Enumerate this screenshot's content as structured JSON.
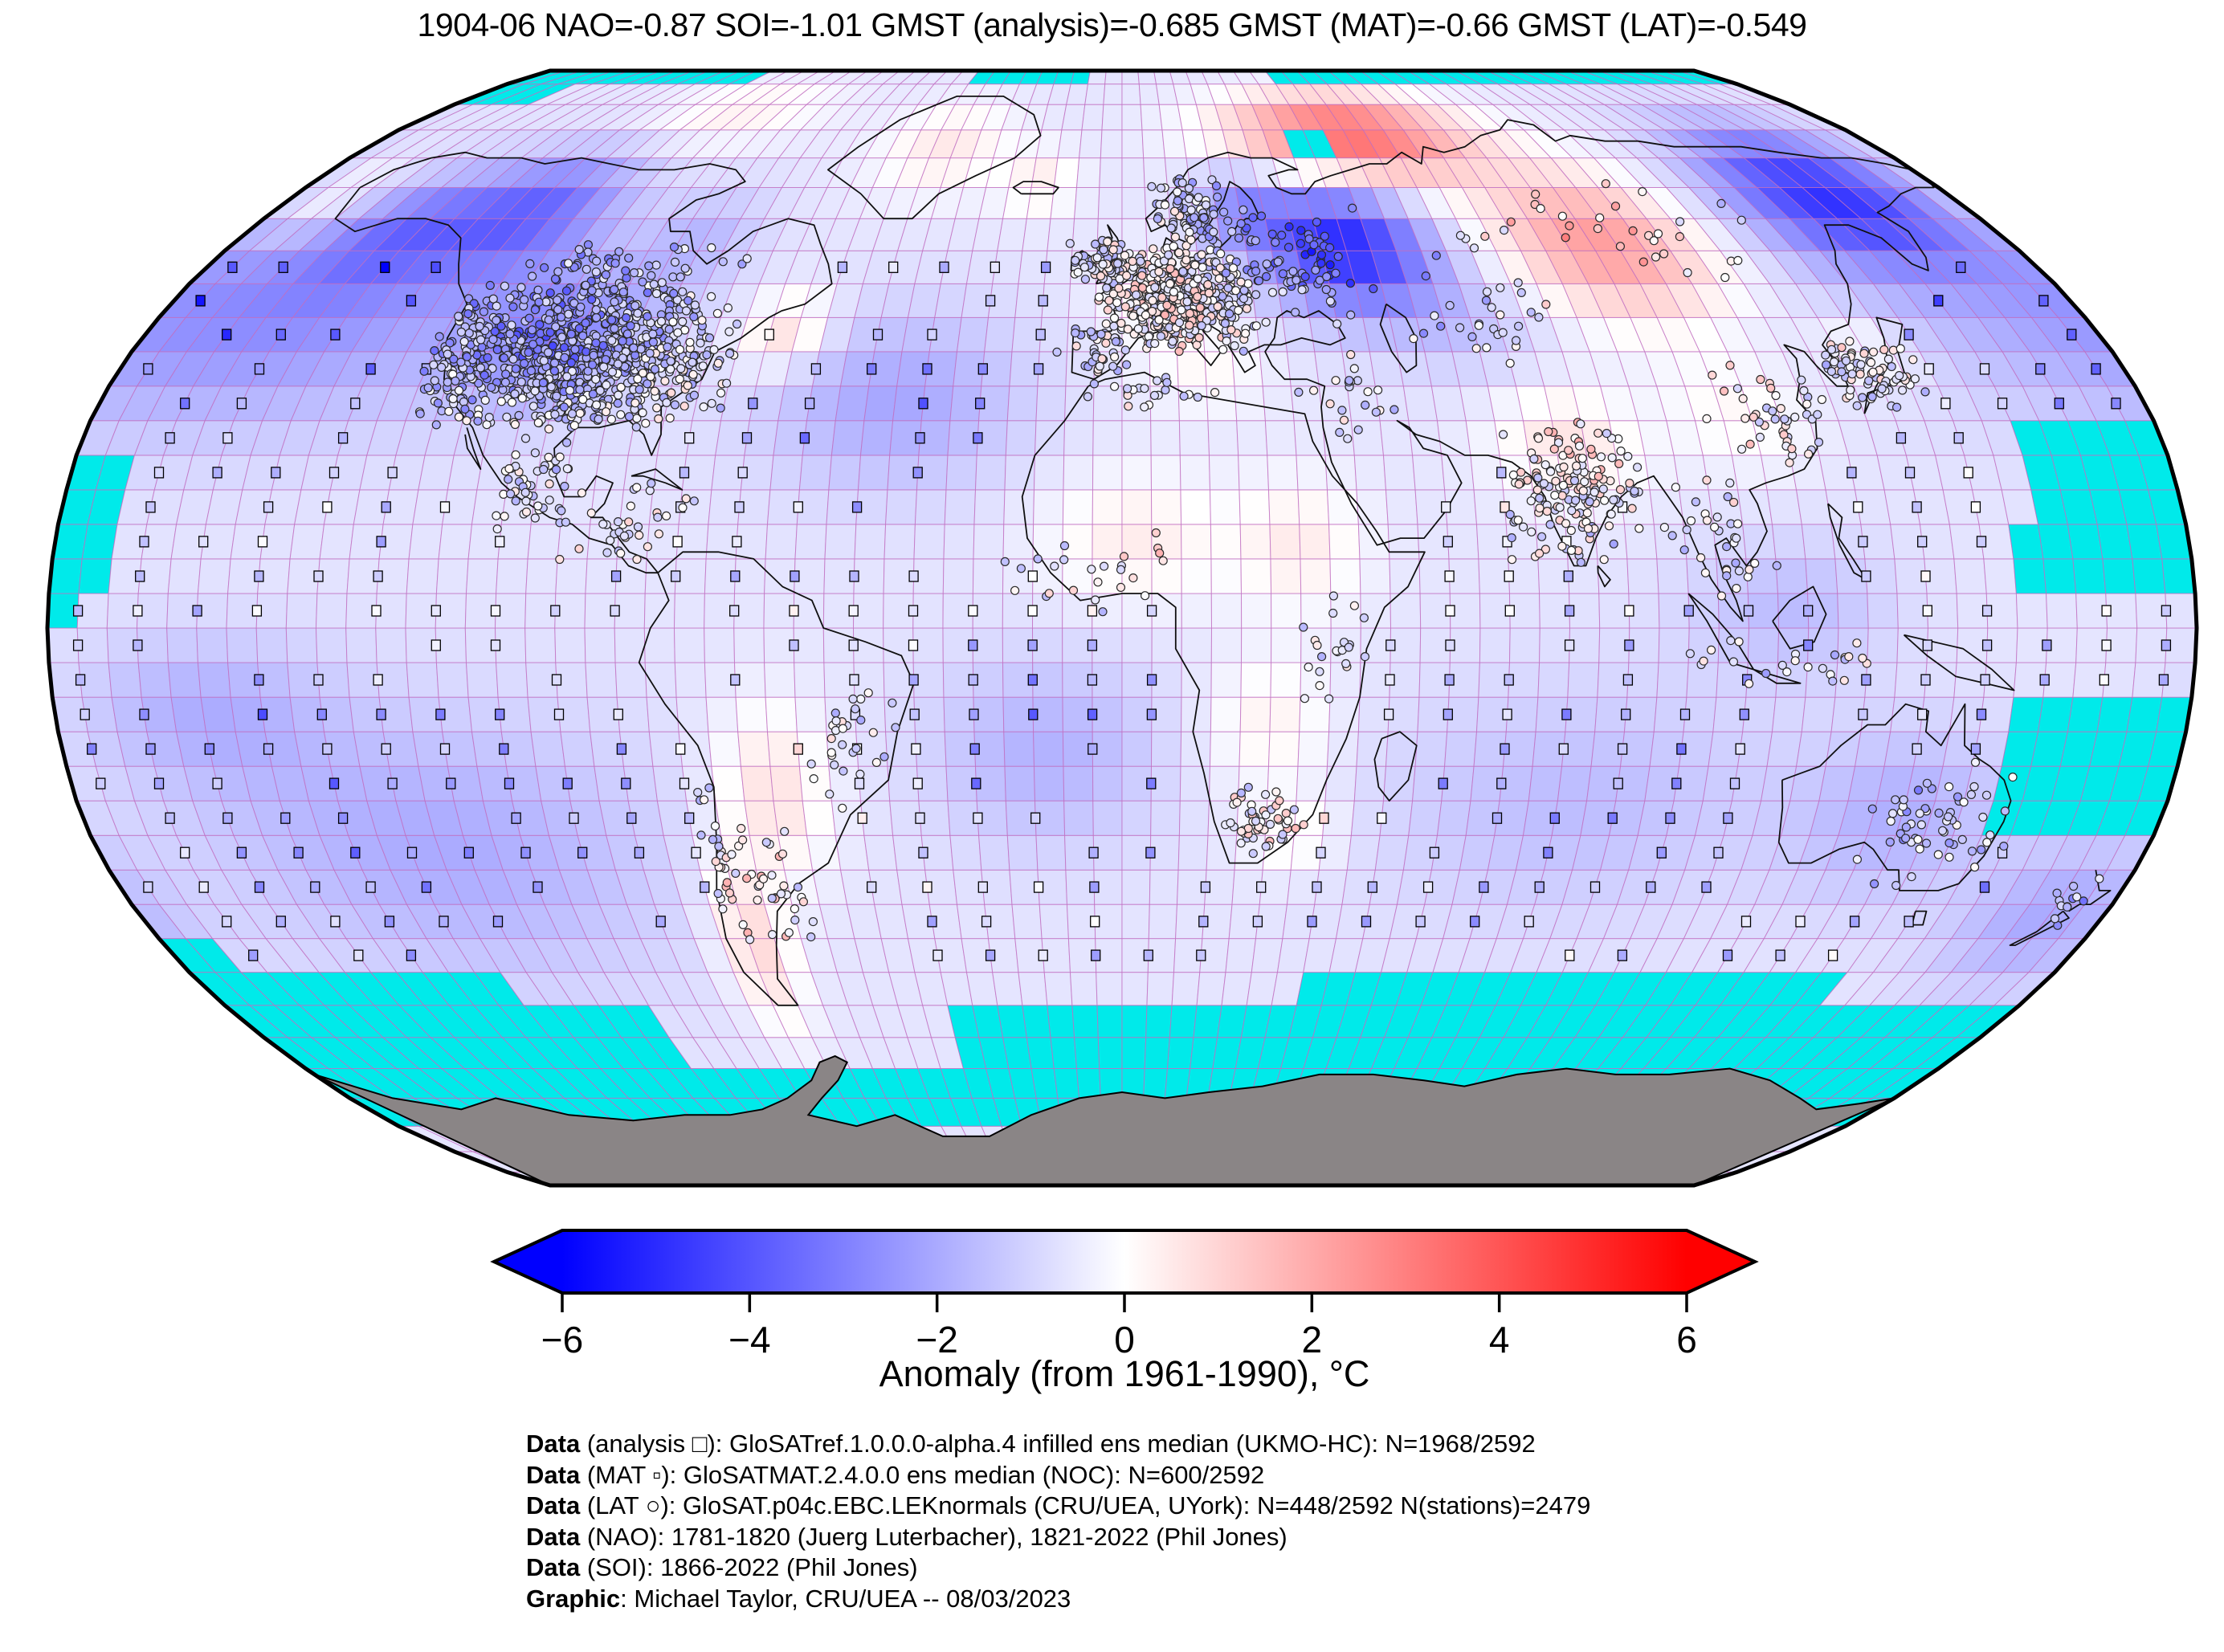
{
  "title": "1904-06 NAO=-0.87 SOI=-1.01 GMST (analysis)=-0.685 GMST (MAT)=-0.66 GMST (LAT)=-0.549",
  "colorbar": {
    "label": "Anomaly (from 1961-1990), °C",
    "ticks": [
      -6,
      -4,
      -2,
      0,
      2,
      4,
      6
    ],
    "min": -6,
    "max": 6,
    "left_color": "#0000ff",
    "mid_color": "#ffffff",
    "right_color": "#ff0000",
    "outline_color": "#000000"
  },
  "footer": {
    "lines": [
      {
        "prefix": "Data",
        "rest": " (analysis □): GloSATref.1.0.0.0-alpha.4 infilled ens median (UKMO-HC): N=1968/2592"
      },
      {
        "prefix": "Data",
        "rest": " (MAT ▫): GloSATMAT.2.4.0.0 ens median (NOC): N=600/2592"
      },
      {
        "prefix": "Data",
        "rest": " (LAT ○): GloSAT.p04c.EBC.LEKnormals (CRU/UEA, UYork): N=448/2592 N(stations)=2479"
      },
      {
        "prefix": "Data",
        "rest": " (NAO): 1781-1820 (Juerg Luterbacher), 1821-2022 (Phil Jones)"
      },
      {
        "prefix": "Data",
        "rest": " (SOI): 1866-2022 (Phil Jones)"
      },
      {
        "prefix": "Graphic",
        "rest": ": Michael Taylor, CRU/UEA -- 08/03/2023"
      }
    ]
  },
  "map": {
    "missing_color": "#00eaea",
    "antarctica_color": "#8a8586",
    "grid_color": "#c06ec0",
    "coastline_color": "#101010",
    "outline_color": "#000000",
    "background": "#ffffff"
  },
  "chart_data": {
    "type": "heatmap",
    "subtype": "global-gridded-anomaly-map",
    "projection": "robinson",
    "grid_resolution_deg": 5,
    "period": "1904-06",
    "indices": {
      "NAO": -0.87,
      "SOI": -1.01,
      "GMST_analysis": -0.685,
      "GMST_MAT": -0.66,
      "GMST_LAT": -0.549
    },
    "counts": {
      "analysis_cells": "1968/2592",
      "MAT_cells": "600/2592",
      "LAT_cells": "448/2592",
      "stations": 2479
    },
    "colormap": {
      "name": "blue-white-red",
      "range": [
        -6,
        6
      ],
      "missing": "cyan",
      "land_no_data": "gray"
    },
    "anomaly_base": -0.35,
    "anomaly_blobs": [
      [
        -163,
        46,
        34,
        12,
        -1.25
      ],
      [
        -148,
        58,
        10,
        6,
        -0.9
      ],
      [
        -125,
        61,
        12,
        7,
        -1.5
      ],
      [
        -104,
        42,
        11,
        7,
        -1.15
      ],
      [
        -86,
        56,
        8,
        6,
        -0.55
      ],
      [
        -62,
        43,
        6,
        4,
        0.9
      ],
      [
        -100,
        79,
        16,
        5,
        0.55
      ],
      [
        -42,
        72,
        11,
        6,
        0.65
      ],
      [
        -18,
        66,
        6,
        4,
        0.55
      ],
      [
        -172,
        63,
        8,
        5,
        0.7
      ],
      [
        -40,
        33,
        16,
        9,
        -0.85
      ],
      [
        8,
        48,
        8,
        5,
        0.5
      ],
      [
        15,
        37,
        8,
        4,
        0.4
      ],
      [
        2,
        13,
        11,
        7,
        0.6
      ],
      [
        30,
        12,
        8,
        7,
        0.6
      ],
      [
        45,
        56,
        12,
        7,
        -2.6
      ],
      [
        25,
        62,
        7,
        5,
        -1.0
      ],
      [
        55,
        74,
        20,
        6,
        2.4
      ],
      [
        97,
        56,
        15,
        8,
        1.7
      ],
      [
        152,
        64,
        15,
        8,
        -2.3
      ],
      [
        136,
        40,
        6,
        4,
        0.5
      ],
      [
        108,
        31,
        9,
        6,
        0.45
      ],
      [
        77,
        27,
        9,
        6,
        0.7
      ],
      [
        112,
        3,
        12,
        7,
        -0.55
      ],
      [
        -60,
        -24,
        7,
        9,
        0.8
      ],
      [
        -69,
        -46,
        5,
        9,
        0.95
      ],
      [
        -13,
        -18,
        14,
        10,
        -0.7
      ],
      [
        25,
        -14,
        8,
        7,
        0.55
      ],
      [
        30,
        -30,
        6,
        4,
        0.5
      ],
      [
        78,
        -25,
        24,
        12,
        -0.55
      ],
      [
        135,
        -27,
        13,
        9,
        -0.7
      ],
      [
        170,
        -42,
        12,
        8,
        -0.8
      ],
      [
        -120,
        -32,
        28,
        14,
        -0.8
      ],
      [
        -155,
        -12,
        15,
        8,
        -0.65
      ],
      [
        65,
        44,
        12,
        6,
        -0.45
      ]
    ],
    "missing_regions": [
      [
        85,
        90,
        -180,
        -110
      ],
      [
        85,
        90,
        -45,
        -10
      ],
      [
        85,
        90,
        45,
        180
      ],
      [
        80,
        85,
        -180,
        -160
      ],
      [
        70,
        75,
        38,
        48
      ],
      [
        5,
        25,
        -180,
        -168
      ],
      [
        0,
        5,
        -180,
        -175
      ],
      [
        15,
        30,
        155,
        180
      ],
      [
        5,
        15,
        150,
        180
      ],
      [
        -30,
        -10,
        152,
        180
      ],
      [
        -50,
        -45,
        -180,
        -170
      ],
      [
        -55,
        -50,
        -180,
        -120
      ],
      [
        -55,
        -50,
        35,
        140
      ],
      [
        -65,
        -55,
        -180,
        -95
      ],
      [
        -65,
        -55,
        -35,
        180
      ],
      [
        -75,
        -65,
        -180,
        180
      ]
    ],
    "mat_marker_rows": [
      {
        "lat": 52.5,
        "ranges": [
          [
            160,
            180
          ],
          [
            -180,
            -130
          ],
          [
            -55,
            -8
          ]
        ]
      },
      {
        "lat": 47.5,
        "ranges": [
          [
            150,
            180
          ],
          [
            -180,
            -126
          ],
          [
            -52,
            -8
          ]
        ]
      },
      {
        "lat": 42.5,
        "ranges": [
          [
            145,
            180
          ],
          [
            -180,
            -126
          ],
          [
            -65,
            -8
          ]
        ]
      },
      {
        "lat": 37.5,
        "ranges": [
          [
            140,
            180
          ],
          [
            -180,
            -124
          ],
          [
            -70,
            -8
          ]
        ]
      },
      {
        "lat": 32.5,
        "ranges": [
          [
            140,
            180
          ],
          [
            -180,
            -118
          ],
          [
            -72,
            -10
          ]
        ]
      },
      {
        "lat": 27.5,
        "ranges": [
          [
            128,
            180
          ],
          [
            -180,
            -112
          ],
          [
            -78,
            -14
          ]
        ]
      },
      {
        "lat": 22.5,
        "ranges": [
          [
            122,
            180
          ],
          [
            -180,
            -108
          ],
          [
            -80,
            -18
          ],
          [
            58,
            70
          ]
        ]
      },
      {
        "lat": 17.5,
        "ranges": [
          [
            118,
            180
          ],
          [
            -180,
            -102
          ],
          [
            -80,
            -20
          ],
          [
            55,
            73
          ],
          [
            84,
            94
          ]
        ]
      },
      {
        "lat": 12.5,
        "ranges": [
          [
            118,
            180
          ],
          [
            -180,
            -96
          ],
          [
            -80,
            -24
          ],
          [
            50,
            75
          ],
          [
            80,
            94
          ]
        ]
      },
      {
        "lat": 7.5,
        "ranges": [
          [
            104,
            180
          ],
          [
            -180,
            -84
          ],
          [
            -76,
            -10
          ],
          [
            48,
            96
          ]
        ]
      },
      {
        "lat": 2.5,
        "ranges": [
          [
            98,
            180
          ],
          [
            -180,
            -84
          ],
          [
            -70,
            6
          ],
          [
            46,
            96
          ]
        ]
      },
      {
        "lat": -2.5,
        "ranges": [
          [
            98,
            180
          ],
          [
            -180,
            -84
          ],
          [
            -70,
            8
          ],
          [
            42,
            96
          ]
        ]
      },
      {
        "lat": -7.5,
        "ranges": [
          [
            100,
            180
          ],
          [
            -180,
            -80
          ],
          [
            -68,
            10
          ],
          [
            40,
            100
          ]
        ]
      },
      {
        "lat": -12.5,
        "ranges": [
          [
            118,
            180
          ],
          [
            -180,
            -76
          ],
          [
            -64,
            10
          ],
          [
            40,
            112
          ]
        ]
      },
      {
        "lat": -17.5,
        "ranges": [
          [
            118,
            180
          ],
          [
            -180,
            -74
          ],
          [
            -58,
            10
          ],
          [
            38,
            112
          ]
        ]
      },
      {
        "lat": -22.5,
        "ranges": [
          [
            152,
            180
          ],
          [
            -180,
            -72
          ],
          [
            -52,
            12
          ],
          [
            36,
            110
          ]
        ]
      },
      {
        "lat": -27.5,
        "ranges": [
          [
            155,
            180
          ],
          [
            -180,
            -72
          ],
          [
            -46,
            14
          ],
          [
            32,
            112
          ]
        ]
      },
      {
        "lat": -32.5,
        "ranges": [
          [
            155,
            180
          ],
          [
            -180,
            -74
          ],
          [
            -40,
            16
          ],
          [
            28,
            112
          ]
        ]
      },
      {
        "lat": -37.5,
        "ranges": [
          [
            150,
            180
          ],
          [
            -180,
            -74
          ],
          [
            -52,
            20
          ],
          [
            24,
            114
          ]
        ]
      },
      {
        "lat": -42.5,
        "ranges": [
          [
            176,
            180
          ],
          [
            -180,
            -76
          ],
          [
            -54,
            22
          ],
          [
            20,
            145
          ]
        ]
      },
      {
        "lat": -47.5,
        "ranges": [
          [
            -180,
            -120
          ],
          [
            -52,
            26
          ],
          [
            68,
            142
          ]
        ]
      }
    ],
    "station_clusters": [
      [
        -98,
        39,
        21,
        8,
        900
      ],
      [
        -119,
        41,
        4,
        8,
        70
      ],
      [
        -98,
        51,
        18,
        4,
        80
      ],
      [
        -100,
        21,
        7,
        5,
        50
      ],
      [
        -84,
        14,
        9,
        5,
        35
      ],
      [
        -71,
        -33,
        2,
        10,
        28
      ],
      [
        -62,
        -36,
        6,
        7,
        32
      ],
      [
        -45,
        -17,
        8,
        8,
        30
      ],
      [
        10,
        48,
        11,
        6,
        480
      ],
      [
        14,
        61,
        7,
        5,
        90
      ],
      [
        -4,
        53,
        5,
        3,
        60
      ],
      [
        -5,
        40,
        5,
        3,
        35
      ],
      [
        33,
        52,
        13,
        7,
        90
      ],
      [
        95,
        57,
        35,
        7,
        35
      ],
      [
        68,
        44,
        13,
        5,
        28
      ],
      [
        40,
        34,
        9,
        5,
        22
      ],
      [
        77,
        20,
        9,
        8,
        160
      ],
      [
        101,
        13,
        8,
        7,
        35
      ],
      [
        114,
        30,
        9,
        7,
        45
      ],
      [
        134,
        37,
        7,
        4,
        75
      ],
      [
        112,
        -5,
        14,
        3,
        25
      ],
      [
        142,
        -29,
        10,
        7,
        60
      ],
      [
        172,
        -40,
        3,
        3,
        12
      ],
      [
        25,
        -28,
        6,
        4,
        55
      ],
      [
        -6,
        9,
        13,
        5,
        25
      ],
      [
        36,
        -4,
        5,
        8,
        22
      ],
      [
        3,
        34,
        11,
        2,
        22
      ]
    ],
    "marker_legend": {
      "analysis": "open square",
      "MAT": "small filled square",
      "LAT": "small circle"
    }
  }
}
